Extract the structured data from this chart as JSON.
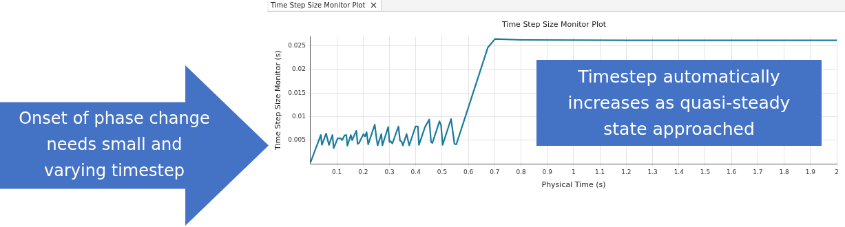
{
  "chart_data": {
    "type": "line",
    "title": "Time Step Size Monitor Plot",
    "xlabel": "Physical Time (s)",
    "ylabel": "Time Step Size Monitor (s)",
    "annotations": [
      "Time Step Size Monitor Plot",
      "Onset of phase change needs small and varying timestep",
      "Timestep automatically increases as quasi-steady state approached"
    ],
    "x": [
      0,
      0.039,
      0.043,
      0.059,
      0.07,
      0.083,
      0.088,
      0.103,
      0.114,
      0.12,
      0.129,
      0.136,
      0.14,
      0.153,
      0.158,
      0.174,
      0.179,
      0.184,
      0.201,
      0.207,
      0.213,
      0.219,
      0.244,
      0.251,
      0.255,
      0.269,
      0.273,
      0.295,
      0.3,
      0.304,
      0.311,
      0.334,
      0.34,
      0.346,
      0.351,
      0.365,
      0.375,
      0.399,
      0.408,
      0.412,
      0.435,
      0.451,
      0.458,
      0.463,
      0.49,
      0.496,
      0.502,
      0.534,
      0.547,
      0.554,
      0.674,
      0.701,
      0.8,
      1.2,
      1.6,
      2
    ],
    "series": [
      {
        "color": "#1a7a9c",
        "values": [
          0.0003,
          0.0061,
          0.004,
          0.0064,
          0.004,
          0.0061,
          0.0033,
          0.0054,
          0.0054,
          0.005,
          0.006,
          0.0061,
          0.0038,
          0.0061,
          0.005,
          0.007,
          0.0042,
          0.0044,
          0.0063,
          0.0058,
          0.0067,
          0.0041,
          0.0083,
          0.0052,
          0.0039,
          0.0063,
          0.0039,
          0.0078,
          0.0046,
          0.0048,
          0.0043,
          0.0079,
          0.0049,
          0.0047,
          0.0039,
          0.0063,
          0.0039,
          0.0079,
          0.0079,
          0.004,
          0.0078,
          0.0094,
          0.0046,
          0.0044,
          0.009,
          0.0082,
          0.004,
          0.0095,
          0.0042,
          0.0041,
          0.0247,
          0.0265,
          0.0263,
          0.0262,
          0.0262,
          0.0262
        ]
      }
    ],
    "xlim": [
      0,
      2
    ],
    "ylim": [
      0,
      0.027
    ],
    "xticks": [
      0.1,
      0.2,
      0.3,
      0.4,
      0.5,
      0.6,
      0.7,
      0.8,
      0.9,
      1,
      1.1,
      1.2,
      1.3,
      1.4,
      1.5,
      1.6,
      1.7,
      1.8,
      1.9,
      2
    ],
    "yticks": [
      0.005,
      0.01,
      0.015,
      0.02,
      0.025
    ],
    "grid": true,
    "legend": false,
    "marker": "none",
    "line_style": "solid"
  }
}
